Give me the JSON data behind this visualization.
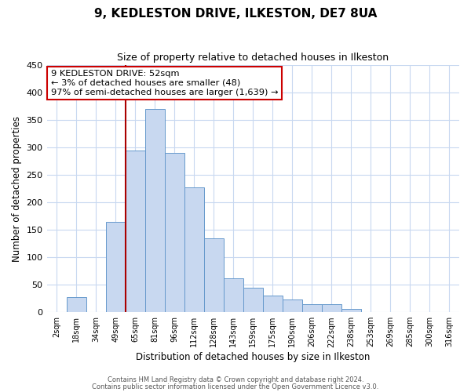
{
  "title": "9, KEDLESTON DRIVE, ILKESTON, DE7 8UA",
  "subtitle": "Size of property relative to detached houses in Ilkeston",
  "xlabel": "Distribution of detached houses by size in Ilkeston",
  "ylabel": "Number of detached properties",
  "bin_labels": [
    "2sqm",
    "18sqm",
    "34sqm",
    "49sqm",
    "65sqm",
    "81sqm",
    "96sqm",
    "112sqm",
    "128sqm",
    "143sqm",
    "159sqm",
    "175sqm",
    "190sqm",
    "206sqm",
    "222sqm",
    "238sqm",
    "253sqm",
    "269sqm",
    "285sqm",
    "300sqm",
    "316sqm"
  ],
  "bar_values": [
    0,
    28,
    0,
    165,
    295,
    370,
    290,
    228,
    135,
    62,
    44,
    30,
    23,
    15,
    15,
    6,
    0,
    0,
    0,
    0,
    0
  ],
  "bar_color": "#c8d8f0",
  "bar_edge_color": "#6699cc",
  "vline_x_idx": 4,
  "vline_color": "#aa0000",
  "ylim": [
    0,
    450
  ],
  "yticks": [
    0,
    50,
    100,
    150,
    200,
    250,
    300,
    350,
    400,
    450
  ],
  "annotation_text": "9 KEDLESTON DRIVE: 52sqm\n← 3% of detached houses are smaller (48)\n97% of semi-detached houses are larger (1,639) →",
  "annotation_box_color": "#ffffff",
  "annotation_box_edge": "#cc0000",
  "footer1": "Contains HM Land Registry data © Crown copyright and database right 2024.",
  "footer2": "Contains public sector information licensed under the Open Government Licence v3.0.",
  "background_color": "#ffffff",
  "grid_color": "#c8d8f0"
}
